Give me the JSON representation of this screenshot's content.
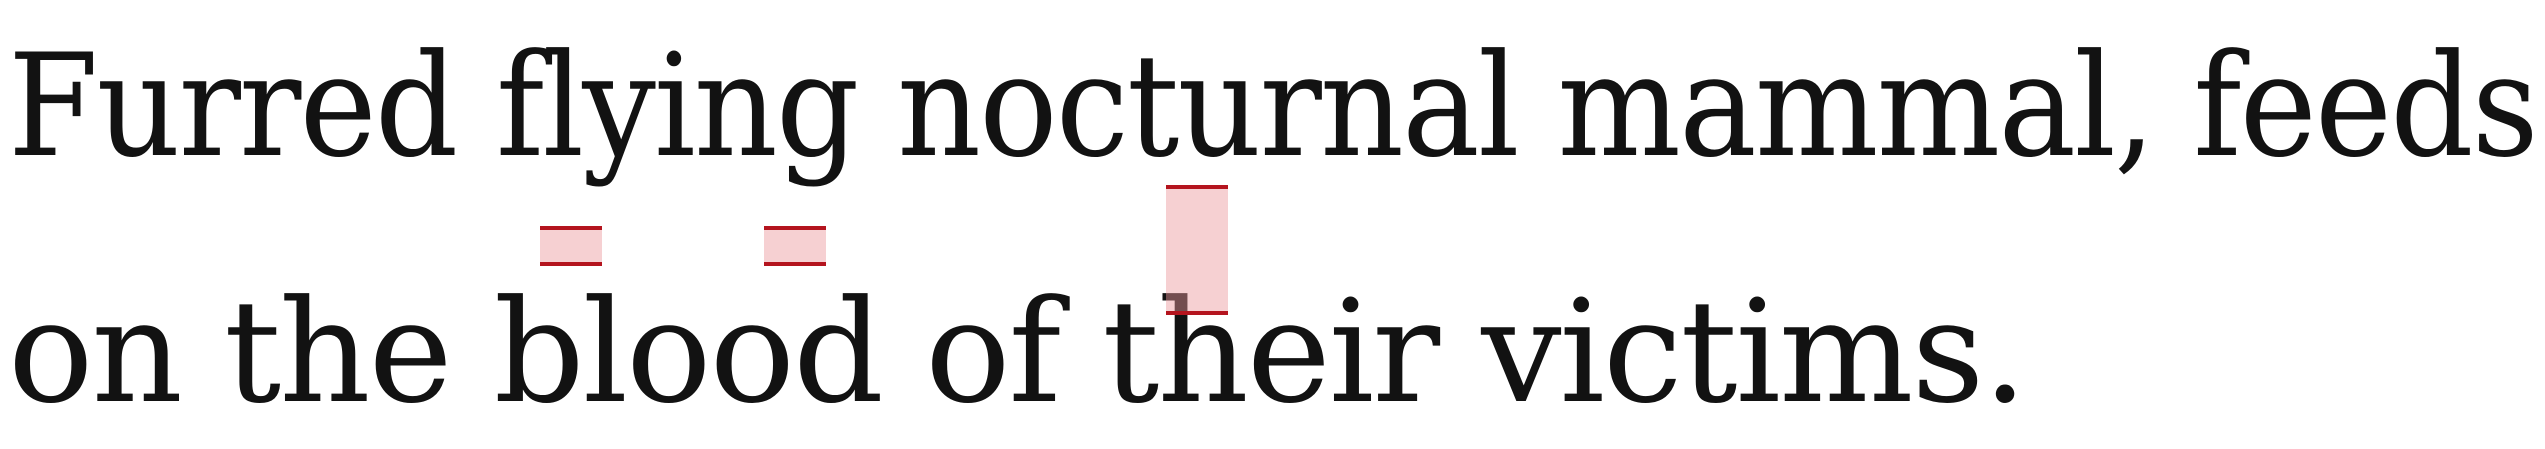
{
  "text": {
    "line1": "Furred flying nocturnal mammal, feeds",
    "line2": "on the blood of their victims."
  },
  "colors": {
    "text": "#121212",
    "marker_fill": "#f4c8ca",
    "marker_edge": "#b4141e"
  }
}
